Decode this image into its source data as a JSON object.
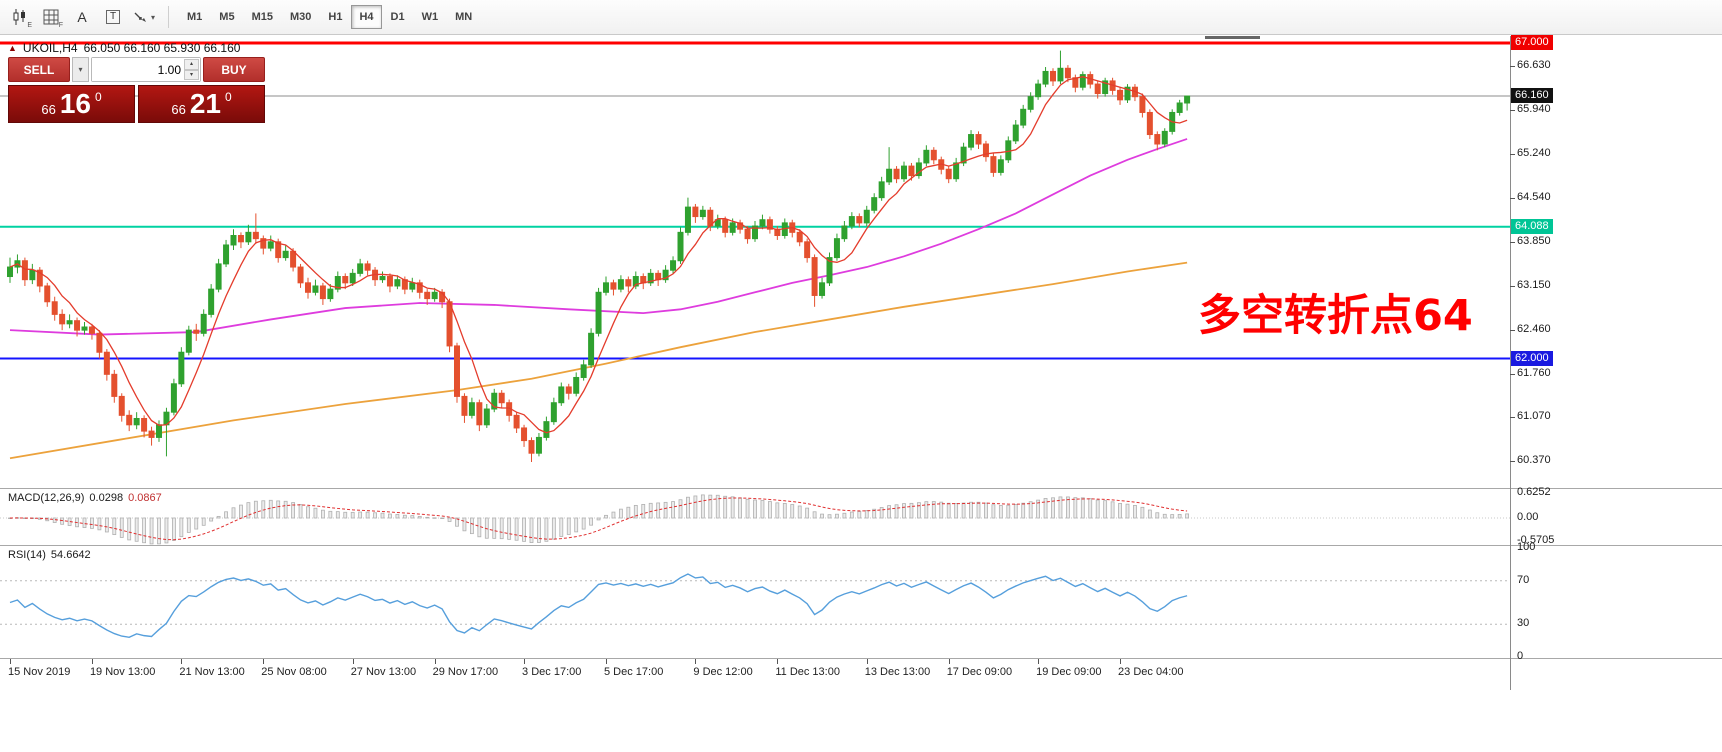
{
  "toolbar": {
    "icons": [
      "candlestick-chart",
      "grid",
      "font-label",
      "text-tool",
      "arrow-tool"
    ],
    "icon_sub_e": "E",
    "icon_sub_f": "F",
    "font_icon_glyph": "A",
    "text_icon_glyph": "T",
    "timeframes": [
      "M1",
      "M5",
      "M15",
      "M30",
      "H1",
      "H4",
      "D1",
      "W1",
      "MN"
    ],
    "active_timeframe": "H4"
  },
  "chart": {
    "symbol_period": "UKOIL,H4",
    "ohlc_text": "66.050 66.160 65.930 66.160",
    "annotation": "多空转折点64",
    "trade_panel": {
      "sell_label": "SELL",
      "buy_label": "BUY",
      "volume": "1.00",
      "sell_price": {
        "big_figure": "66",
        "pips": "16",
        "point": "0"
      },
      "buy_price": {
        "big_figure": "66",
        "pips": "21",
        "point": "0"
      }
    },
    "levels": [
      {
        "price": 67.0,
        "label": "67.000",
        "color": "#ff0000",
        "badge": "#f00000",
        "width": 3
      },
      {
        "price": 64.088,
        "label": "64.088",
        "color": "#00d2a2",
        "badge": "#00c596",
        "width": 2
      },
      {
        "price": 62.0,
        "label": "62.000",
        "color": "#1414ff",
        "badge": "#1a1ae0",
        "width": 2
      }
    ],
    "current_price": {
      "value": 66.16,
      "label": "66.160"
    },
    "price_axis_labels": [
      "66.630",
      "65.940",
      "65.240",
      "64.540",
      "63.850",
      "63.150",
      "62.460",
      "61.760",
      "61.070",
      "60.370"
    ]
  },
  "macd": {
    "label": "MACD(12,26,9)",
    "value_main": "0.0298",
    "value_signal": "0.0867",
    "axis": [
      "0.6252",
      "0.00",
      "-0.5705"
    ]
  },
  "rsi": {
    "label": "RSI(14)",
    "value": "54.6642",
    "axis": [
      "100",
      "70",
      "30",
      "0"
    ],
    "upper_level": 70,
    "lower_level": 30
  },
  "time_axis": {
    "labels": [
      {
        "text": "15 Nov 2019",
        "bar": 0
      },
      {
        "text": "19 Nov 13:00",
        "bar": 11
      },
      {
        "text": "21 Nov 13:00",
        "bar": 23
      },
      {
        "text": "25 Nov 08:00",
        "bar": 34
      },
      {
        "text": "27 Nov 13:00",
        "bar": 46
      },
      {
        "text": "29 Nov 17:00",
        "bar": 57
      },
      {
        "text": "3 Dec 17:00",
        "bar": 69
      },
      {
        "text": "5 Dec 17:00",
        "bar": 80
      },
      {
        "text": "9 Dec 12:00",
        "bar": 92
      },
      {
        "text": "11 Dec 13:00",
        "bar": 103
      },
      {
        "text": "13 Dec 13:00",
        "bar": 115
      },
      {
        "text": "17 Dec 09:00",
        "bar": 126
      },
      {
        "text": "19 Dec 09:00",
        "bar": 138
      },
      {
        "text": "23 Dec 04:00",
        "bar": 149
      }
    ]
  },
  "chart_data": {
    "type": "candlestick",
    "symbol": "UKOIL",
    "timeframe": "H4",
    "ylim": [
      59.95,
      67.08
    ],
    "colors": {
      "up": "#2fa12f",
      "down": "#e4502e",
      "ma_fast": "#e43c2c",
      "ma_mid": "#de3cde",
      "ma_slow": "#eca23c",
      "rsi": "#569fdc",
      "macd_hist_fill": "#ebebeb",
      "macd_hist_stroke": "#b0b0b0",
      "macd_signal": "#e03030",
      "current_price_line": "#8c8c8c"
    },
    "candles": [
      [
        63.3,
        63.6,
        63.2,
        63.45
      ],
      [
        63.45,
        63.65,
        63.35,
        63.55
      ],
      [
        63.55,
        63.6,
        63.15,
        63.25
      ],
      [
        63.25,
        63.5,
        63.18,
        63.4
      ],
      [
        63.4,
        63.45,
        63.05,
        63.15
      ],
      [
        63.15,
        63.2,
        62.82,
        62.9
      ],
      [
        62.9,
        62.98,
        62.6,
        62.7
      ],
      [
        62.7,
        62.78,
        62.45,
        62.55
      ],
      [
        62.55,
        62.7,
        62.48,
        62.6
      ],
      [
        62.6,
        62.65,
        62.35,
        62.45
      ],
      [
        62.45,
        62.58,
        62.38,
        62.5
      ],
      [
        62.5,
        62.55,
        62.3,
        62.4
      ],
      [
        62.4,
        62.45,
        62.0,
        62.1
      ],
      [
        62.1,
        62.15,
        61.65,
        61.75
      ],
      [
        61.75,
        61.82,
        61.3,
        61.4
      ],
      [
        61.4,
        61.45,
        61.0,
        61.1
      ],
      [
        61.1,
        61.18,
        60.85,
        60.95
      ],
      [
        60.95,
        61.15,
        60.88,
        61.05
      ],
      [
        61.05,
        61.1,
        60.75,
        60.85
      ],
      [
        60.85,
        60.92,
        60.62,
        60.75
      ],
      [
        60.75,
        61.02,
        60.68,
        60.95
      ],
      [
        60.95,
        61.22,
        60.45,
        61.15
      ],
      [
        61.15,
        61.68,
        61.1,
        61.6
      ],
      [
        61.6,
        62.18,
        61.55,
        62.1
      ],
      [
        62.1,
        62.52,
        62.05,
        62.45
      ],
      [
        62.45,
        62.55,
        62.28,
        62.4
      ],
      [
        62.4,
        62.78,
        62.35,
        62.7
      ],
      [
        62.7,
        63.18,
        62.65,
        63.1
      ],
      [
        63.1,
        63.58,
        63.05,
        63.5
      ],
      [
        63.5,
        63.88,
        63.45,
        63.8
      ],
      [
        63.8,
        64.05,
        63.72,
        63.95
      ],
      [
        63.95,
        64.0,
        63.75,
        63.85
      ],
      [
        63.85,
        64.12,
        63.8,
        64.0
      ],
      [
        64.0,
        64.3,
        63.82,
        63.9
      ],
      [
        63.9,
        63.95,
        63.65,
        63.75
      ],
      [
        63.75,
        63.95,
        63.7,
        63.85
      ],
      [
        63.85,
        63.9,
        63.52,
        63.6
      ],
      [
        63.6,
        63.8,
        63.55,
        63.7
      ],
      [
        63.7,
        63.75,
        63.38,
        63.45
      ],
      [
        63.45,
        63.5,
        63.12,
        63.2
      ],
      [
        63.2,
        63.28,
        62.95,
        63.05
      ],
      [
        63.05,
        63.25,
        63.0,
        63.15
      ],
      [
        63.15,
        63.2,
        62.85,
        62.95
      ],
      [
        62.95,
        63.18,
        62.9,
        63.1
      ],
      [
        63.1,
        63.38,
        63.05,
        63.3
      ],
      [
        63.3,
        63.35,
        63.1,
        63.2
      ],
      [
        63.2,
        63.42,
        63.15,
        63.35
      ],
      [
        63.35,
        63.58,
        63.3,
        63.5
      ],
      [
        63.5,
        63.55,
        63.32,
        63.4
      ],
      [
        63.4,
        63.45,
        63.15,
        63.25
      ],
      [
        63.25,
        63.38,
        63.2,
        63.3
      ],
      [
        63.3,
        63.35,
        63.05,
        63.15
      ],
      [
        63.15,
        63.32,
        63.1,
        63.25
      ],
      [
        63.25,
        63.3,
        63.02,
        63.1
      ],
      [
        63.1,
        63.28,
        63.05,
        63.2
      ],
      [
        63.2,
        63.25,
        62.95,
        63.05
      ],
      [
        63.05,
        63.1,
        62.85,
        62.95
      ],
      [
        62.95,
        63.12,
        62.9,
        63.05
      ],
      [
        63.05,
        63.1,
        62.8,
        62.9
      ],
      [
        62.9,
        62.95,
        62.1,
        62.2
      ],
      [
        62.2,
        62.25,
        61.3,
        61.4
      ],
      [
        61.4,
        61.45,
        60.98,
        61.1
      ],
      [
        61.1,
        61.38,
        61.05,
        61.3
      ],
      [
        61.3,
        61.35,
        60.85,
        60.95
      ],
      [
        60.95,
        61.28,
        60.9,
        61.2
      ],
      [
        61.2,
        61.52,
        61.15,
        61.45
      ],
      [
        61.45,
        61.5,
        61.22,
        61.3
      ],
      [
        61.3,
        61.35,
        61.0,
        61.1
      ],
      [
        61.1,
        61.15,
        60.82,
        60.9
      ],
      [
        60.9,
        60.95,
        60.6,
        60.7
      ],
      [
        60.7,
        60.75,
        60.36,
        60.5
      ],
      [
        60.5,
        60.82,
        60.45,
        60.75
      ],
      [
        60.75,
        61.08,
        60.7,
        61.0
      ],
      [
        61.0,
        61.38,
        60.95,
        61.3
      ],
      [
        61.3,
        61.62,
        61.25,
        61.55
      ],
      [
        61.55,
        61.6,
        61.35,
        61.45
      ],
      [
        61.45,
        61.78,
        61.4,
        61.7
      ],
      [
        61.7,
        61.98,
        61.65,
        61.9
      ],
      [
        61.9,
        62.48,
        61.85,
        62.4
      ],
      [
        62.4,
        63.12,
        62.35,
        63.05
      ],
      [
        63.05,
        63.3,
        63.0,
        63.2
      ],
      [
        63.2,
        63.25,
        63.0,
        63.1
      ],
      [
        63.1,
        63.32,
        63.05,
        63.25
      ],
      [
        63.25,
        63.3,
        63.05,
        63.15
      ],
      [
        63.15,
        63.38,
        63.1,
        63.3
      ],
      [
        63.3,
        63.35,
        63.1,
        63.2
      ],
      [
        63.2,
        63.42,
        63.15,
        63.35
      ],
      [
        63.35,
        63.4,
        63.15,
        63.25
      ],
      [
        63.25,
        63.48,
        63.2,
        63.4
      ],
      [
        63.4,
        63.62,
        63.35,
        63.55
      ],
      [
        63.55,
        64.08,
        63.5,
        64.0
      ],
      [
        64.0,
        64.55,
        63.95,
        64.4
      ],
      [
        64.4,
        64.45,
        64.15,
        64.25
      ],
      [
        64.25,
        64.42,
        64.2,
        64.35
      ],
      [
        64.35,
        64.4,
        64.02,
        64.1
      ],
      [
        64.1,
        64.28,
        64.05,
        64.2
      ],
      [
        64.2,
        64.25,
        63.92,
        64.0
      ],
      [
        64.0,
        64.22,
        63.95,
        64.15
      ],
      [
        64.15,
        64.2,
        63.98,
        64.05
      ],
      [
        64.05,
        64.1,
        63.82,
        63.9
      ],
      [
        63.9,
        64.18,
        63.85,
        64.1
      ],
      [
        64.1,
        64.28,
        64.05,
        64.2
      ],
      [
        64.2,
        64.25,
        63.98,
        64.05
      ],
      [
        64.05,
        64.1,
        63.88,
        63.95
      ],
      [
        63.95,
        64.22,
        63.9,
        64.15
      ],
      [
        64.15,
        64.2,
        63.92,
        64.0
      ],
      [
        64.0,
        64.05,
        63.78,
        63.85
      ],
      [
        63.85,
        63.9,
        63.52,
        63.6
      ],
      [
        63.6,
        63.65,
        62.82,
        63.0
      ],
      [
        63.0,
        63.28,
        62.95,
        63.2
      ],
      [
        63.2,
        63.68,
        63.15,
        63.6
      ],
      [
        63.6,
        63.98,
        63.55,
        63.9
      ],
      [
        63.9,
        64.18,
        63.85,
        64.1
      ],
      [
        64.1,
        64.32,
        64.05,
        64.25
      ],
      [
        64.25,
        64.3,
        64.08,
        64.15
      ],
      [
        64.15,
        64.42,
        64.1,
        64.35
      ],
      [
        64.35,
        64.62,
        64.3,
        64.55
      ],
      [
        64.55,
        64.88,
        64.5,
        64.8
      ],
      [
        64.8,
        65.35,
        64.75,
        65.0
      ],
      [
        65.0,
        65.05,
        64.78,
        64.85
      ],
      [
        64.85,
        65.12,
        64.8,
        65.05
      ],
      [
        65.05,
        65.1,
        64.82,
        64.9
      ],
      [
        64.9,
        65.18,
        64.85,
        65.1
      ],
      [
        65.1,
        65.38,
        65.05,
        65.3
      ],
      [
        65.3,
        65.35,
        65.08,
        65.15
      ],
      [
        65.15,
        65.2,
        64.92,
        65.0
      ],
      [
        65.0,
        65.05,
        64.78,
        64.85
      ],
      [
        64.85,
        65.18,
        64.8,
        65.1
      ],
      [
        65.1,
        65.42,
        65.05,
        65.35
      ],
      [
        65.35,
        65.62,
        65.3,
        65.55
      ],
      [
        65.55,
        65.6,
        65.32,
        65.4
      ],
      [
        65.4,
        65.45,
        65.12,
        65.2
      ],
      [
        65.2,
        65.25,
        64.88,
        64.95
      ],
      [
        64.95,
        65.22,
        64.9,
        65.15
      ],
      [
        65.15,
        65.52,
        65.1,
        65.45
      ],
      [
        65.45,
        65.78,
        65.4,
        65.7
      ],
      [
        65.7,
        66.02,
        65.65,
        65.95
      ],
      [
        65.95,
        66.22,
        65.9,
        66.15
      ],
      [
        66.15,
        66.42,
        66.1,
        66.35
      ],
      [
        66.35,
        66.62,
        66.3,
        66.55
      ],
      [
        66.55,
        66.6,
        66.32,
        66.4
      ],
      [
        66.4,
        66.88,
        66.35,
        66.6
      ],
      [
        66.6,
        66.65,
        66.38,
        66.45
      ],
      [
        66.45,
        66.5,
        66.22,
        66.3
      ],
      [
        66.3,
        66.55,
        66.25,
        66.5
      ],
      [
        66.5,
        66.55,
        66.28,
        66.35
      ],
      [
        66.35,
        66.4,
        66.12,
        66.2
      ],
      [
        66.2,
        66.45,
        66.15,
        66.4
      ],
      [
        66.4,
        66.45,
        66.18,
        66.25
      ],
      [
        66.25,
        66.3,
        66.02,
        66.1
      ],
      [
        66.1,
        66.35,
        66.05,
        66.3
      ],
      [
        66.3,
        66.35,
        66.08,
        66.15
      ],
      [
        66.15,
        66.2,
        65.82,
        65.9
      ],
      [
        65.9,
        65.95,
        65.48,
        65.55
      ],
      [
        65.55,
        65.6,
        65.3,
        65.4
      ],
      [
        65.4,
        65.65,
        65.35,
        65.6
      ],
      [
        65.6,
        65.95,
        65.55,
        65.9
      ],
      [
        65.9,
        66.1,
        65.85,
        66.05
      ],
      [
        66.05,
        66.16,
        65.93,
        66.16
      ]
    ],
    "ma_mid": [
      [
        0,
        62.45
      ],
      [
        12,
        62.38
      ],
      [
        25,
        62.42
      ],
      [
        35,
        62.62
      ],
      [
        45,
        62.8
      ],
      [
        55,
        62.88
      ],
      [
        65,
        62.85
      ],
      [
        75,
        62.78
      ],
      [
        85,
        62.72
      ],
      [
        90,
        62.78
      ],
      [
        95,
        62.9
      ],
      [
        100,
        63.05
      ],
      [
        105,
        63.2
      ],
      [
        110,
        63.32
      ],
      [
        115,
        63.45
      ],
      [
        120,
        63.62
      ],
      [
        125,
        63.82
      ],
      [
        130,
        64.05
      ],
      [
        135,
        64.3
      ],
      [
        140,
        64.6
      ],
      [
        145,
        64.9
      ],
      [
        150,
        65.15
      ],
      [
        154,
        65.32
      ],
      [
        158,
        65.48
      ]
    ],
    "ma_slow": [
      [
        0,
        60.42
      ],
      [
        15,
        60.72
      ],
      [
        30,
        61.02
      ],
      [
        45,
        61.28
      ],
      [
        60,
        61.5
      ],
      [
        70,
        61.68
      ],
      [
        80,
        61.92
      ],
      [
        90,
        62.18
      ],
      [
        100,
        62.42
      ],
      [
        110,
        62.62
      ],
      [
        120,
        62.82
      ],
      [
        130,
        63.0
      ],
      [
        140,
        63.18
      ],
      [
        150,
        63.38
      ],
      [
        158,
        63.52
      ]
    ]
  }
}
